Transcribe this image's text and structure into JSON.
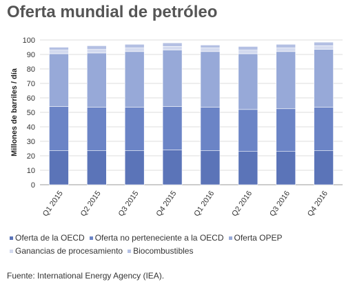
{
  "chart_data": {
    "type": "bar",
    "stacked": true,
    "title": "Oferta mundial de petróleo",
    "ylabel": "Millones de barriles / día",
    "xlabel": "",
    "ylim": [
      0,
      100
    ],
    "yticks": [
      0,
      10,
      20,
      30,
      40,
      50,
      60,
      70,
      80,
      90,
      100
    ],
    "grid": true,
    "legend_position": "bottom",
    "categories": [
      "Q1 2015",
      "Q2 2015",
      "Q3 2015",
      "Q4 2015",
      "Q1 2016",
      "Q2 2016",
      "Q3 2016",
      "Q4 2016"
    ],
    "series": [
      {
        "name": "Oferta de la OECD",
        "color": "#5b74b8",
        "values": [
          23.5,
          23.5,
          23.5,
          24.0,
          23.5,
          23.0,
          23.0,
          23.5
        ]
      },
      {
        "name": "Oferta no perteneciente a la OECD",
        "color": "#6b84c6",
        "values": [
          30.5,
          30.0,
          30.0,
          30.0,
          30.0,
          29.0,
          29.5,
          30.0
        ]
      },
      {
        "name": "Oferta OPEP",
        "color": "#97a9d8",
        "values": [
          36.5,
          37.5,
          38.5,
          39.0,
          38.5,
          38.5,
          39.5,
          40.0
        ]
      },
      {
        "name": "Ganancias de procesamiento",
        "color": "#d3daef",
        "values": [
          2.5,
          2.5,
          2.5,
          2.5,
          2.5,
          2.5,
          2.5,
          2.5
        ]
      },
      {
        "name": "Biocombustibles",
        "color": "#b4c0e3",
        "values": [
          2.0,
          2.5,
          2.5,
          2.5,
          2.0,
          2.5,
          2.5,
          2.5
        ]
      }
    ]
  },
  "source": "Fuente: International Energy Agency (IEA)."
}
